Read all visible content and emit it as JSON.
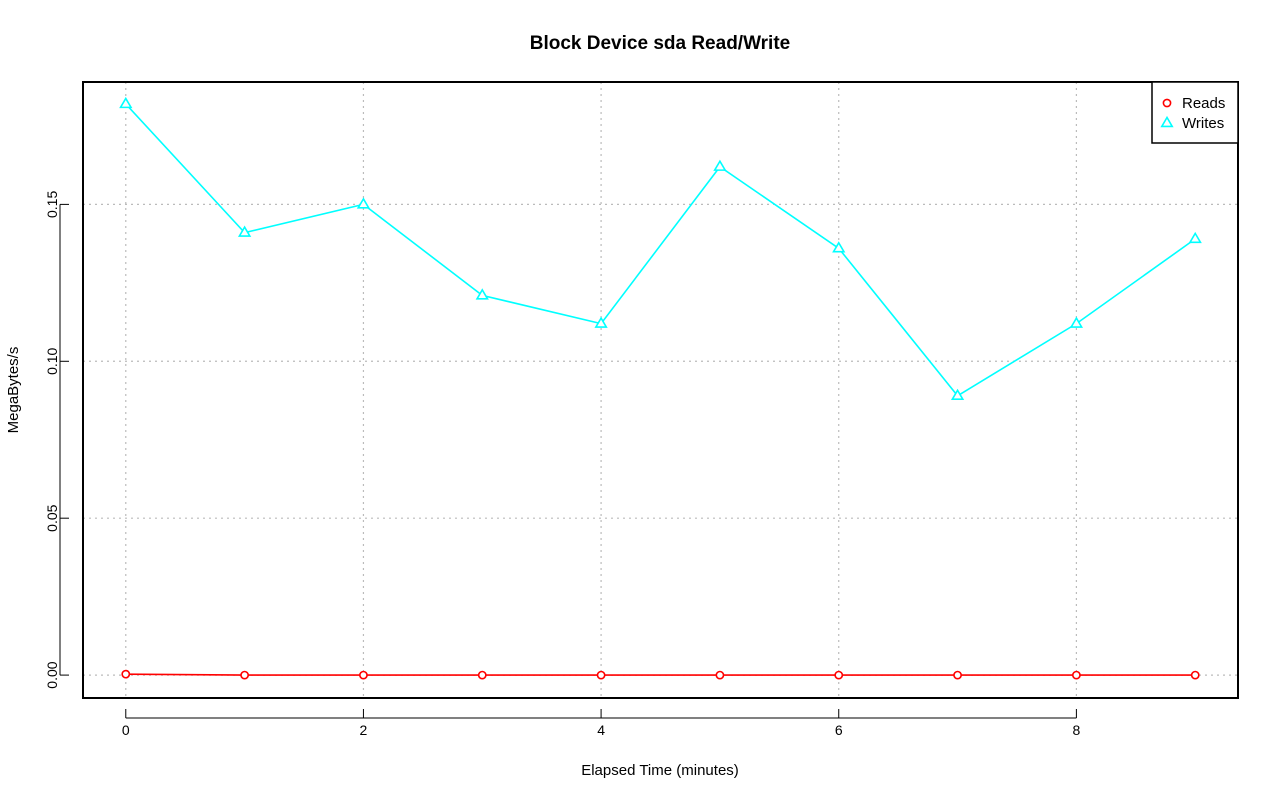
{
  "chart_data": {
    "type": "line",
    "title": "Block Device sda Read/Write",
    "xlabel": "Elapsed Time (minutes)",
    "ylabel": "MegaBytes/s",
    "x": [
      0,
      1,
      2,
      3,
      4,
      5,
      6,
      7,
      8,
      9
    ],
    "xlim": [
      -0.36,
      9.36
    ],
    "ylim": [
      -0.0073,
      0.189
    ],
    "xticks": [
      "0",
      "2",
      "4",
      "6",
      "8"
    ],
    "yticks": [
      "0.00",
      "0.05",
      "0.10",
      "0.15"
    ],
    "grid": true,
    "legend_position": "top-right",
    "series": [
      {
        "name": "Reads",
        "color": "#ff0000",
        "marker": "circle",
        "values": [
          0.0003,
          0.0,
          0.0,
          0.0,
          0.0,
          0.0,
          0.0,
          0.0,
          0.0,
          0.0
        ]
      },
      {
        "name": "Writes",
        "color": "#00ffff",
        "marker": "triangle",
        "values": [
          0.182,
          0.141,
          0.15,
          0.121,
          0.112,
          0.162,
          0.136,
          0.089,
          0.112,
          0.139
        ]
      }
    ]
  }
}
